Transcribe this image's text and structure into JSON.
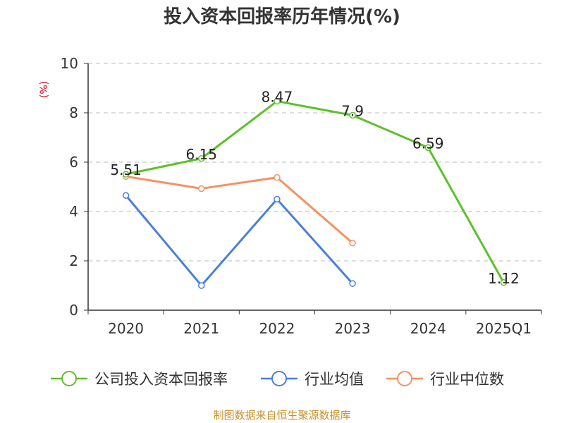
{
  "chart_data": {
    "type": "line",
    "title": "投入资本回报率历年情况(%)",
    "ylabel": "(%)",
    "xlabel": "",
    "ylim": [
      0,
      10
    ],
    "yticks": [
      0,
      2,
      4,
      6,
      8,
      10
    ],
    "categories": [
      "2020",
      "2021",
      "2022",
      "2023",
      "2024",
      "2025Q1"
    ],
    "grid": true,
    "legend_position": "bottom",
    "series": [
      {
        "name": "公司投入资本回报率",
        "color": "#5CC12A",
        "values": [
          5.51,
          6.15,
          8.47,
          7.9,
          6.59,
          1.12
        ],
        "labels": [
          "5.51",
          "6.15",
          "8.47",
          "7.9",
          "6.59",
          "1.12"
        ]
      },
      {
        "name": "行业均值",
        "color": "#4A7FDB",
        "values": [
          4.65,
          1.0,
          4.5,
          1.08,
          null,
          null
        ]
      },
      {
        "name": "行业中位数",
        "color": "#F79063",
        "values": [
          5.42,
          4.93,
          5.38,
          2.72,
          null,
          null
        ]
      }
    ]
  },
  "source": "制图数据来自恒生聚源数据库",
  "colors": {
    "unit_label": "#D0021B",
    "source": "#C8902A",
    "axis": "#333333",
    "grid": "#BBBBBB"
  }
}
